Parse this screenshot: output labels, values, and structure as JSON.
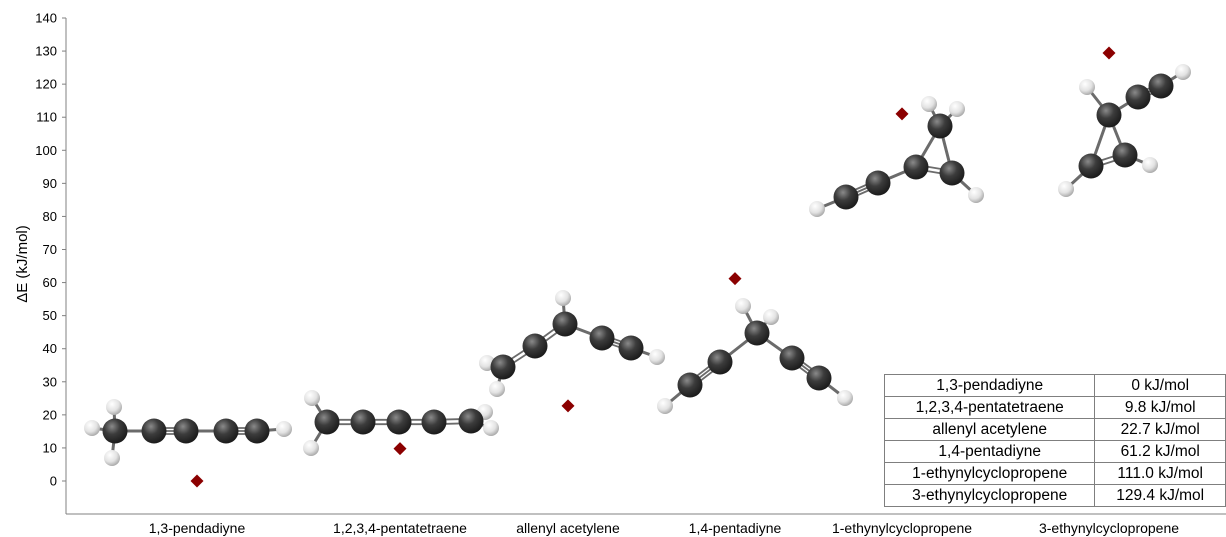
{
  "chart_data": {
    "type": "scatter",
    "title": "",
    "ylabel": "ΔE (kJ/mol)",
    "xlabel": "",
    "ylim": [
      -10,
      140
    ],
    "ytick_step": 10,
    "grid": false,
    "categories": [
      "1,3-pendadiyne",
      "1,2,3,4-pentatetraene",
      "allenyl acetylene",
      "1,4-pentadiyne",
      "1-ethynylcyclopropene",
      "3-ethynylcyclopropene"
    ],
    "values": [
      0,
      9.8,
      22.7,
      61.2,
      111.0,
      129.4
    ],
    "marker": "diamond",
    "marker_color": "#8b0000",
    "table": [
      {
        "name": "1,3-pendadiyne",
        "value": "0 kJ/mol"
      },
      {
        "name": "1,2,3,4-pentatetraene",
        "value": "9.8 kJ/mol"
      },
      {
        "name": "allenyl acetylene",
        "value": "22.7 kJ/mol"
      },
      {
        "name": "1,4-pentadiyne",
        "value": "61.2 kJ/mol"
      },
      {
        "name": "1-ethynylcyclopropene",
        "value": "111.0 kJ/mol"
      },
      {
        "name": "3-ethynylcyclopropene",
        "value": "129.4 kJ/mol"
      }
    ]
  },
  "colors": {
    "carbon_atom": "#3a3a3a",
    "hydrogen_atom": "#e8e8e8",
    "bond": "#6b6b6b"
  }
}
